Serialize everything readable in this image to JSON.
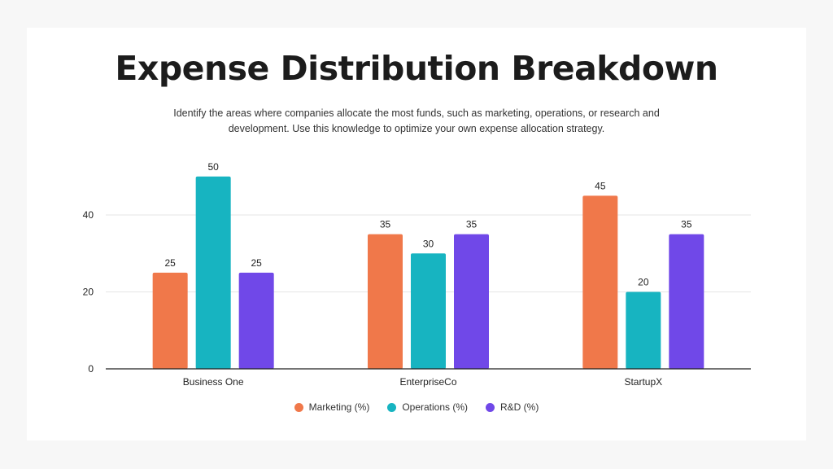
{
  "title": "Expense Distribution Breakdown",
  "subtitle": "Identify the areas where companies allocate the most funds, such as marketing, operations, or research and development. Use this knowledge to optimize your own expense allocation strategy.",
  "chart_data": {
    "type": "bar",
    "categories": [
      "Business One",
      "EnterpriseCo",
      "StartupX"
    ],
    "series": [
      {
        "name": "Marketing (%)",
        "values": [
          25,
          35,
          45
        ],
        "color": "#f0784a"
      },
      {
        "name": "Operations (%)",
        "values": [
          50,
          30,
          20
        ],
        "color": "#17b4c1"
      },
      {
        "name": "R&D (%)",
        "values": [
          25,
          35,
          35
        ],
        "color": "#7048e8"
      }
    ],
    "yticks": [
      0,
      20,
      40
    ],
    "ylim": [
      0,
      50
    ],
    "grid": true,
    "data_labels": true,
    "legend": "bottom"
  }
}
